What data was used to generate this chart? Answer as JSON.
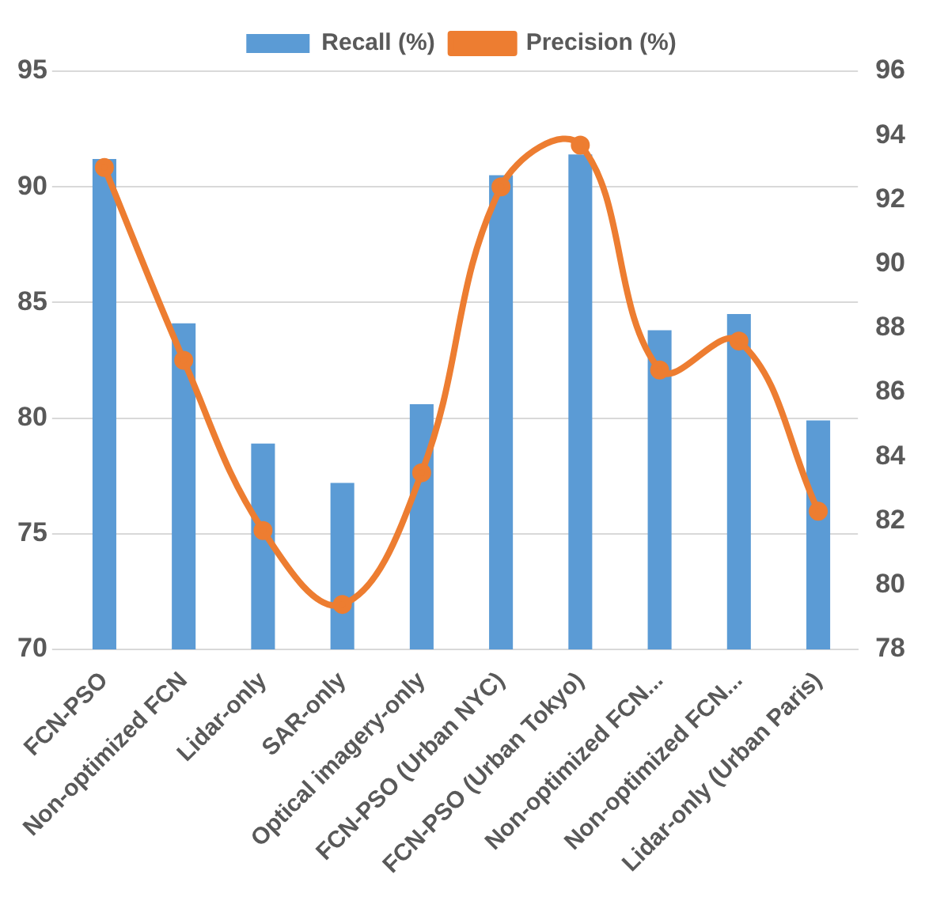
{
  "chart_data": {
    "type": "bar",
    "categories": [
      "FCN-PSO",
      "Non-optimized FCN",
      "Lidar-only",
      "SAR-only",
      "Optical imagery-only",
      "FCN-PSO (Urban NYC)",
      "FCN-PSO (Urban Tokyo)",
      "Non-optimized FCN...",
      "Non-optimized FCN...",
      "Lidar-only (Urban Paris)"
    ],
    "series": [
      {
        "name": "Recall (%)",
        "color": "#5b9bd5",
        "values": [
          91.2,
          84.1,
          78.9,
          77.2,
          80.6,
          90.5,
          91.4,
          83.8,
          84.5,
          79.9
        ]
      },
      {
        "name": "Precision (%)",
        "type": "line",
        "axis": "y2",
        "color": "#ed7d31",
        "values": [
          93.0,
          87.0,
          81.7,
          79.4,
          83.5,
          92.4,
          93.7,
          86.7,
          87.6,
          82.3
        ]
      }
    ],
    "ylim": [
      70,
      95
    ],
    "yticks": [
      70,
      75,
      80,
      85,
      90,
      95
    ],
    "y2lim": [
      78,
      96
    ],
    "y2ticks": [
      78,
      80,
      82,
      84,
      86,
      88,
      90,
      92,
      94,
      96
    ],
    "grid": "y",
    "legend": "top",
    "marker": "circle"
  }
}
